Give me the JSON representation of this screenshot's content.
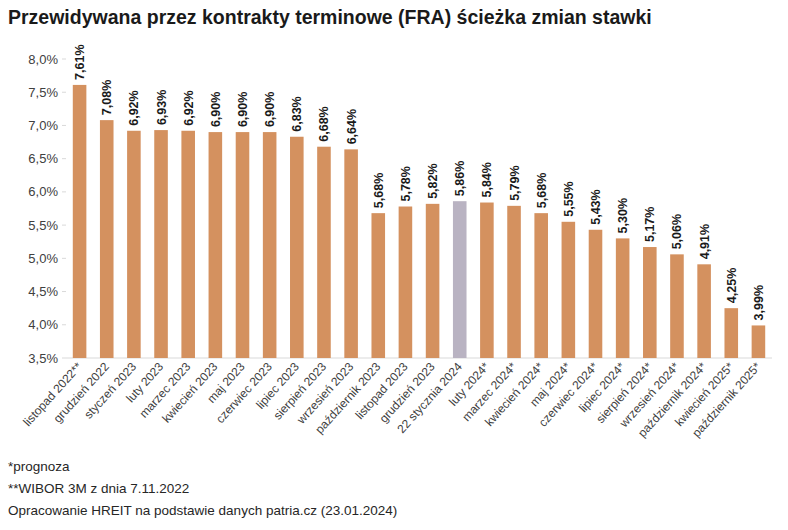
{
  "chart_data": {
    "type": "bar",
    "title": "Przewidywana przez kontrakty terminowe (FRA) ścieżka zmian stawki",
    "categories": [
      "listopad 2022**",
      "grudzień 2022",
      "styczeń 2023",
      "luty 2023",
      "marzec 2023",
      "kwiecień 2023",
      "maj 2023",
      "czerwiec 2023",
      "lipiec 2023",
      "sierpień 2023",
      "wrzesień 2023",
      "październik 2023",
      "listopad 2023",
      "grudzień 2023",
      "22 stycznia 2024",
      "luty 2024*",
      "marzec 2024*",
      "kwiecień 2024*",
      "maj 2024*",
      "czerwiec 2024*",
      "lipiec 2024*",
      "sierpień 2024*",
      "wrzesień 2024*",
      "październik 2024*",
      "kwiecień 2025*",
      "październik 2025*"
    ],
    "values": [
      7.61,
      7.08,
      6.92,
      6.93,
      6.92,
      6.9,
      6.9,
      6.9,
      6.83,
      6.68,
      6.64,
      5.68,
      5.78,
      5.82,
      5.86,
      5.84,
      5.79,
      5.68,
      5.55,
      5.43,
      5.3,
      5.17,
      5.06,
      4.91,
      4.25,
      3.99
    ],
    "value_labels": [
      "7,61%",
      "7,08%",
      "6,92%",
      "6,93%",
      "6,92%",
      "6,90%",
      "6,90%",
      "6,90%",
      "6,83%",
      "6,68%",
      "6,64%",
      "5,68%",
      "5,78%",
      "5,82%",
      "5,86%",
      "5,84%",
      "5,79%",
      "5,68%",
      "5,55%",
      "5,43%",
      "5,30%",
      "5,17%",
      "5,06%",
      "4,91%",
      "4,25%",
      "3,99%"
    ],
    "colors": [
      "#d4915f",
      "#d4915f",
      "#d4915f",
      "#d4915f",
      "#d4915f",
      "#d4915f",
      "#d4915f",
      "#d4915f",
      "#d4915f",
      "#d4915f",
      "#d4915f",
      "#d4915f",
      "#d4915f",
      "#d4915f",
      "#b9b3c2",
      "#d4915f",
      "#d4915f",
      "#d4915f",
      "#d4915f",
      "#d4915f",
      "#d4915f",
      "#d4915f",
      "#d4915f",
      "#d4915f",
      "#d4915f",
      "#d4915f"
    ],
    "ylim": [
      3.5,
      8.0
    ],
    "yticks": [
      {
        "value": 3.5,
        "label": "3,5%"
      },
      {
        "value": 4.0,
        "label": "4,0%"
      },
      {
        "value": 4.5,
        "label": "4,5%"
      },
      {
        "value": 5.0,
        "label": "5,0%"
      },
      {
        "value": 5.5,
        "label": "5,5%"
      },
      {
        "value": 6.0,
        "label": "6,0%"
      },
      {
        "value": 6.5,
        "label": "6,5%"
      },
      {
        "value": 7.0,
        "label": "7,0%"
      },
      {
        "value": 7.5,
        "label": "7,5%"
      },
      {
        "value": 8.0,
        "label": "8,0%"
      }
    ],
    "grid": false,
    "data_labels": true,
    "annotations": [
      "*prognoza",
      "**WIBOR 3M z dnia 7.11.2022",
      "Opracowanie HREIT na podstawie danych patria.cz (23.01.2024)"
    ]
  }
}
